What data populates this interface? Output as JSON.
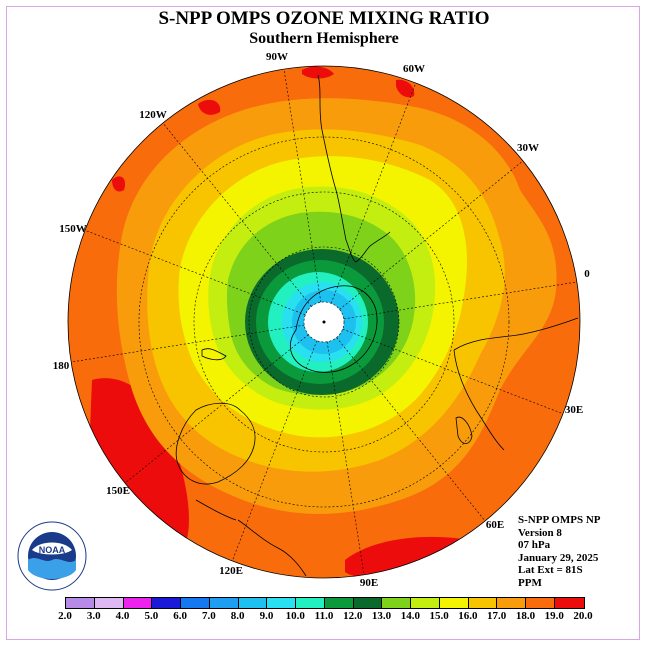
{
  "title": "S-NPP OMPS OZONE MIXING RATIO",
  "subtitle": "Southern Hemisphere",
  "longitude_labels": [
    "90W",
    "60W",
    "30W",
    "0",
    "30E",
    "60E",
    "90E",
    "120E",
    "150E",
    "180",
    "150W",
    "120W"
  ],
  "info": {
    "instrument": "S-NPP OMPS NP",
    "version": "Version 8",
    "level": "07 hPa",
    "date": "January 29, 2025",
    "lat_ext": "Lat Ext = 81S",
    "units": "PPM"
  },
  "logo_text": "NOAA",
  "colorbar": {
    "labels": [
      "2.0",
      "3.0",
      "4.0",
      "5.0",
      "6.0",
      "7.0",
      "8.0",
      "9.0",
      "10.0",
      "11.0",
      "12.0",
      "13.0",
      "14.0",
      "15.0",
      "16.0",
      "17.0",
      "18.0",
      "19.0",
      "20.0"
    ],
    "colors": [
      "#b88ae8",
      "#ddb8f2",
      "#ee22ee",
      "#1a1ad8",
      "#1478f0",
      "#1e9ef0",
      "#1ec0f0",
      "#28e0f0",
      "#22f0c0",
      "#0a9a3c",
      "#0a6a2c",
      "#7ed21a",
      "#c4ee10",
      "#f4f400",
      "#f8c400",
      "#f89c0c",
      "#f86c0c",
      "#ec0c0c",
      "#8a5a3a"
    ]
  }
}
